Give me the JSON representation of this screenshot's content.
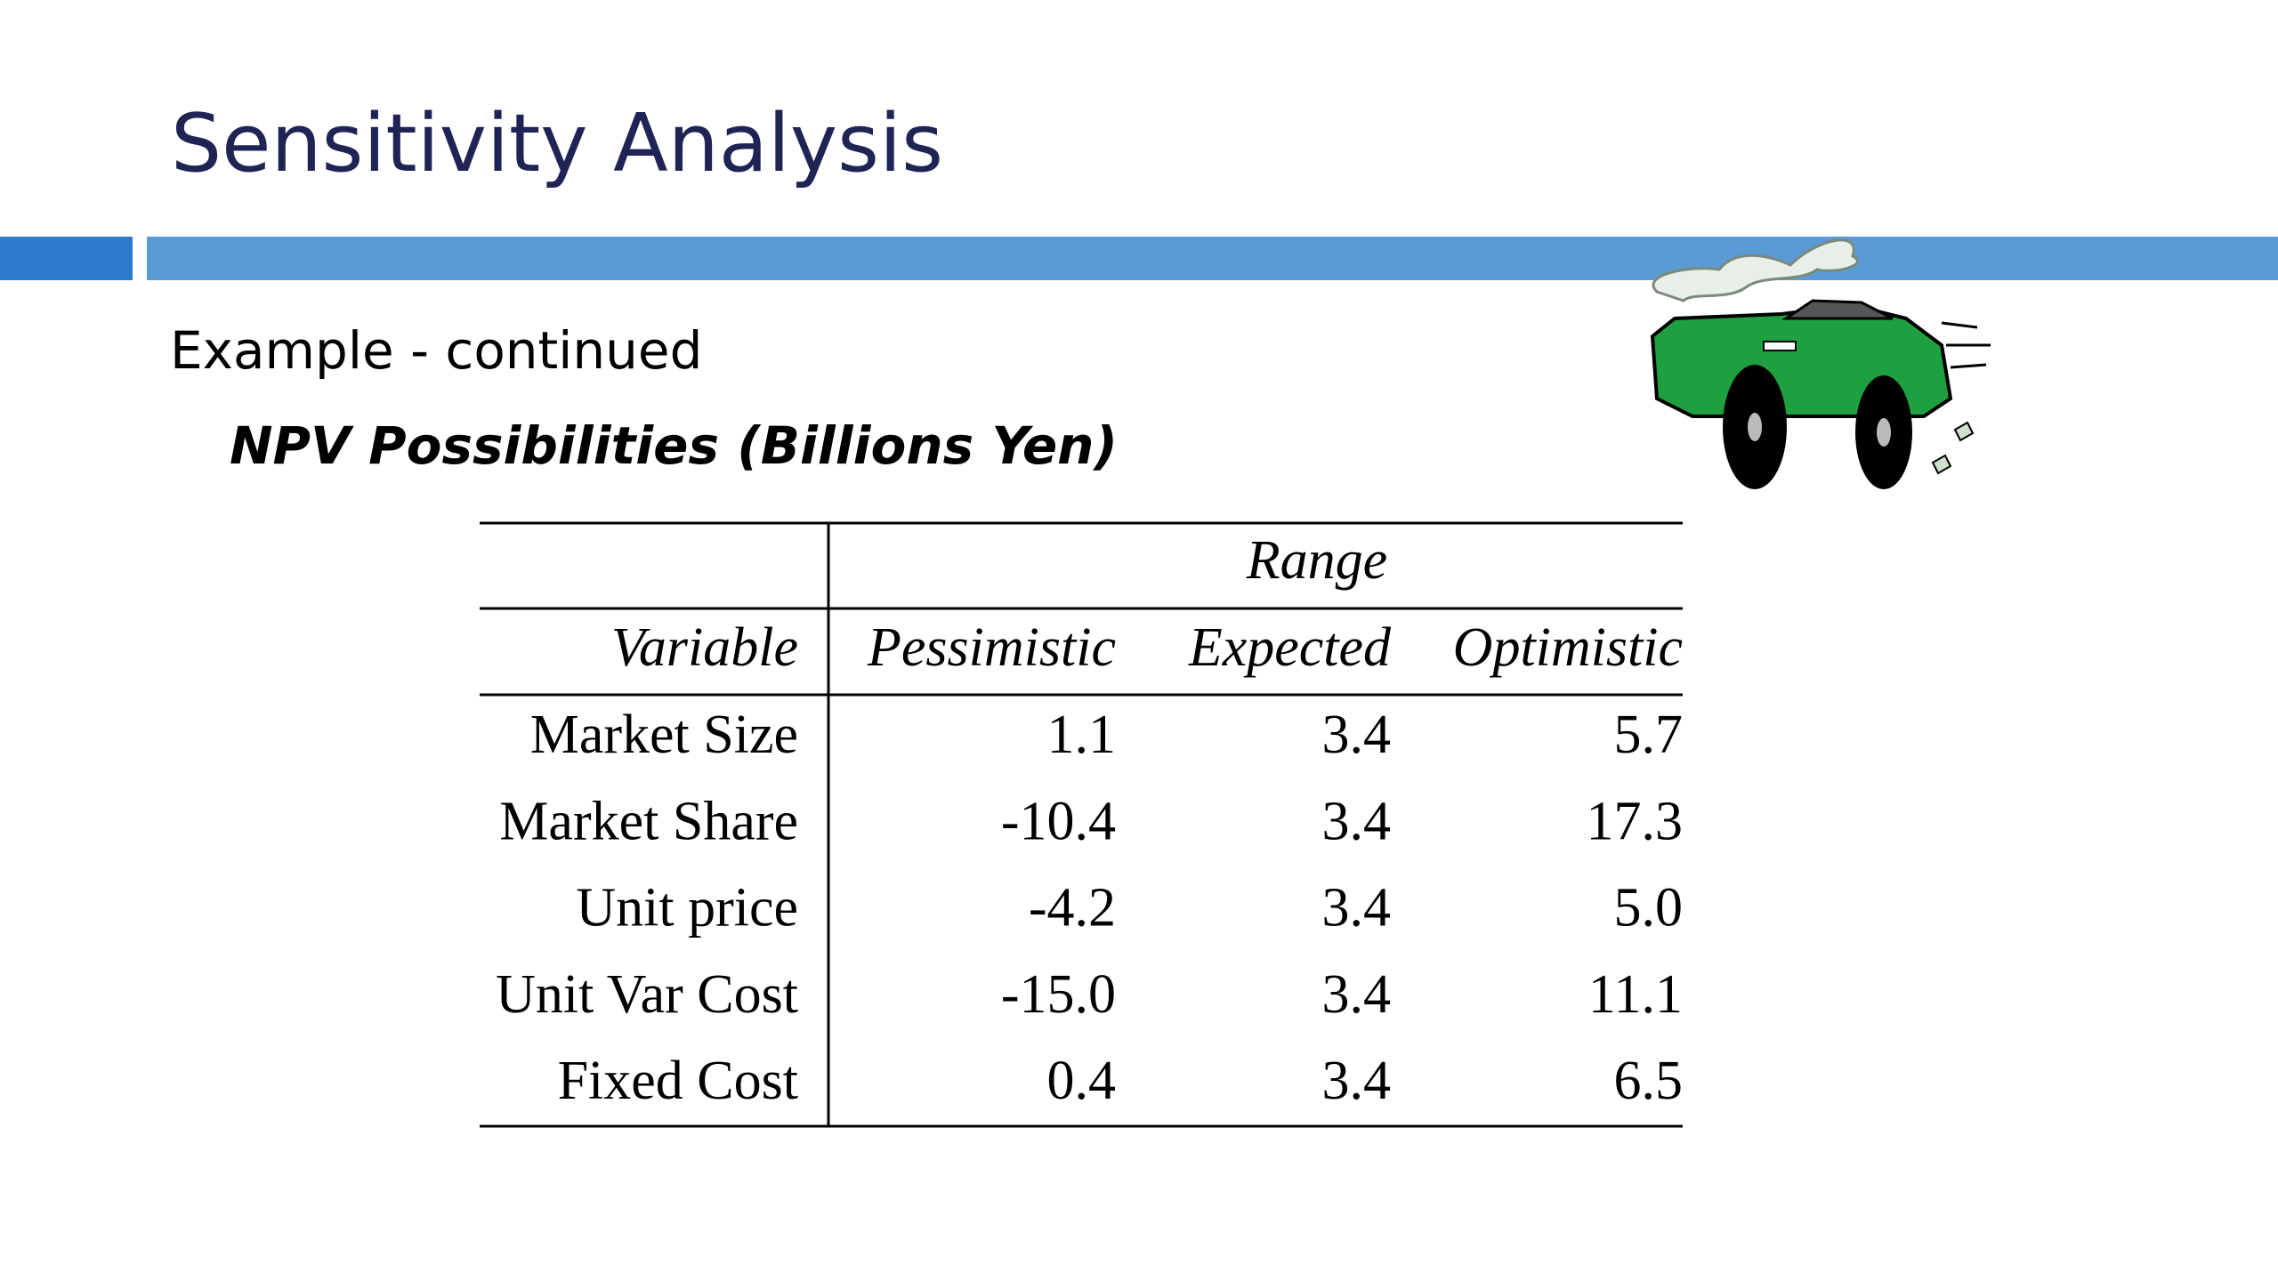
{
  "title": "Sensitivity Analysis",
  "subtitle": "Example - continued",
  "heading": "NPV Possibilities (Billions Yen)",
  "table": {
    "group_header": "Range",
    "columns": [
      "Variable",
      "Pessimistic",
      "Expected",
      "Optimistic"
    ],
    "rows": [
      [
        "Market Size",
        "1.1",
        "3.4",
        "5.7"
      ],
      [
        "Market Share",
        "-10.4",
        "3.4",
        "17.3"
      ],
      [
        "Unit price",
        "-4.2",
        "3.4",
        "5.0"
      ],
      [
        "Unit Var Cost",
        "-15.0",
        "3.4",
        "11.1"
      ],
      [
        "Fixed Cost",
        "0.4",
        "3.4",
        "6.5"
      ]
    ]
  }
}
